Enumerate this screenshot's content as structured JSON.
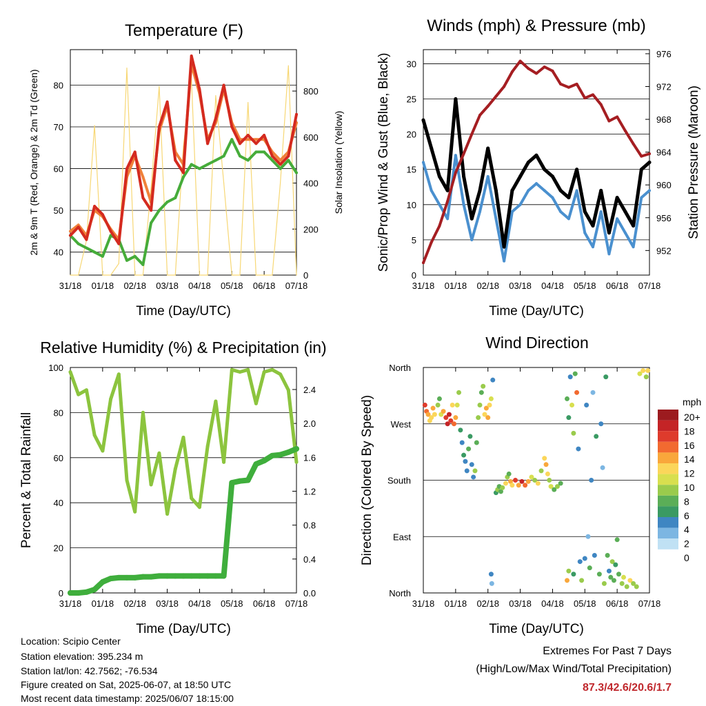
{
  "x_ticks": [
    "31/18",
    "01/18",
    "02/18",
    "03/18",
    "04/18",
    "05/18",
    "06/18",
    "07/18"
  ],
  "chart_data": [
    {
      "type": "line",
      "title": "Temperature (F)",
      "xlabel": "Time (Day/UTC)",
      "ylabel": "2m & 9m T (Red, Orange) & 2m Td (Green)",
      "y2label": "Solar Insolation (Yellow)",
      "ylim": [
        34.5,
        88.5
      ],
      "y_ticks": [
        40,
        50,
        60,
        70,
        80
      ],
      "y2lim": [
        0,
        980
      ],
      "y2_ticks": [
        0,
        200,
        400,
        600,
        800
      ],
      "x": [
        0,
        0.25,
        0.5,
        0.75,
        1.0,
        1.25,
        1.5,
        1.75,
        2.0,
        2.25,
        2.5,
        2.75,
        3.0,
        3.25,
        3.5,
        3.75,
        4.0,
        4.25,
        4.5,
        4.75,
        5.0,
        5.25,
        5.5,
        5.75,
        6.0,
        6.25,
        6.5,
        6.75,
        7.0
      ],
      "series": [
        {
          "color": "#d42a1f",
          "values": [
            44,
            46,
            43,
            51,
            49,
            45,
            42,
            60,
            64,
            53,
            50,
            70,
            76,
            62,
            59,
            87,
            79,
            66,
            72,
            80,
            70,
            66,
            68,
            66,
            68,
            63,
            61,
            63,
            73
          ]
        },
        {
          "color": "#f0813a",
          "values": [
            45,
            46.5,
            44,
            50,
            48.5,
            45.5,
            43,
            58,
            63,
            58,
            52,
            69,
            75,
            64,
            61,
            85,
            78,
            67,
            71,
            79,
            71,
            67,
            67,
            67,
            67,
            64,
            62,
            64,
            71
          ]
        },
        {
          "color": "#46ac3a",
          "values": [
            44,
            42,
            41,
            40,
            39,
            44,
            43,
            38,
            39,
            37,
            47,
            50,
            52,
            53,
            58,
            61,
            60,
            61,
            62,
            63,
            67,
            63,
            62,
            64,
            64,
            62,
            60,
            62,
            59
          ]
        },
        {
          "color": "#f7d774",
          "axis": "right",
          "values": [
            0,
            0,
            150,
            650,
            0,
            0,
            50,
            900,
            0,
            0,
            380,
            820,
            0,
            0,
            560,
            850,
            0,
            0,
            780,
            400,
            0,
            0,
            750,
            0,
            0,
            0,
            400,
            910,
            0
          ]
        }
      ]
    },
    {
      "type": "line",
      "title": "Winds (mph) & Pressure (mb)",
      "xlabel": "Time (Day/UTC)",
      "ylabel": "Sonic/Prop Wind & Gust (Blue, Black)",
      "y2label": "Station Pressure (Maroon)",
      "ylim": [
        0,
        32
      ],
      "y_ticks": [
        0,
        5,
        10,
        15,
        20,
        25,
        30
      ],
      "y2lim": [
        949,
        976.5
      ],
      "y2_ticks": [
        952,
        956,
        960,
        964,
        968,
        972,
        976
      ],
      "x": [
        0,
        0.25,
        0.5,
        0.75,
        1.0,
        1.25,
        1.5,
        1.75,
        2.0,
        2.25,
        2.5,
        2.75,
        3.0,
        3.25,
        3.5,
        3.75,
        4.0,
        4.25,
        4.5,
        4.75,
        5.0,
        5.25,
        5.5,
        5.75,
        6.0,
        6.25,
        6.5,
        6.75,
        7.0
      ],
      "series": [
        {
          "color": "#4a90cf",
          "values": [
            16,
            12,
            10,
            8,
            17,
            10,
            5,
            9,
            14,
            8,
            2,
            9,
            10,
            12,
            13,
            12,
            11,
            9,
            8,
            12,
            6,
            4,
            9,
            3,
            8,
            6,
            4,
            11,
            12
          ]
        },
        {
          "color": "#000000",
          "values": [
            22,
            18,
            14,
            12,
            25,
            14,
            8,
            12,
            18,
            12,
            4,
            12,
            14,
            16,
            17,
            15,
            14,
            12,
            11,
            15,
            9,
            7,
            12,
            6,
            11,
            9,
            7,
            15,
            16
          ]
        },
        {
          "color": "#a51e22",
          "axis": "right",
          "values": [
            950.5,
            953,
            955,
            958,
            961.5,
            963.8,
            966.2,
            968.5,
            969.6,
            970.8,
            972,
            973.8,
            975.1,
            974.2,
            973.6,
            974.4,
            973.9,
            972.3,
            971.9,
            972.3,
            970.6,
            971,
            969.8,
            967.8,
            968.3,
            966.6,
            965,
            963.5,
            963.8
          ]
        }
      ]
    },
    {
      "type": "line",
      "title": "Relative Humidity (%) & Precipitation (in)",
      "xlabel": "Time (Day/UTC)",
      "ylabel": "Percent & Total Rainfall",
      "ylim": [
        0,
        100
      ],
      "y_ticks": [
        0,
        20,
        40,
        60,
        80,
        100
      ],
      "y2lim": [
        0,
        2.66
      ],
      "y2_ticks": [
        "0.0",
        "0.4",
        "0.8",
        "1.2",
        "1.6",
        "2.0",
        "2.4"
      ],
      "x": [
        0,
        0.25,
        0.5,
        0.75,
        1.0,
        1.25,
        1.5,
        1.75,
        2.0,
        2.25,
        2.5,
        2.75,
        3.0,
        3.25,
        3.5,
        3.75,
        4.0,
        4.25,
        4.5,
        4.75,
        5.0,
        5.25,
        5.5,
        5.75,
        6.0,
        6.25,
        6.5,
        6.75,
        7.0
      ],
      "series": [
        {
          "color": "#8cc43e",
          "values": [
            98,
            88,
            90,
            70,
            63,
            86,
            97,
            50,
            36,
            80,
            48,
            62,
            35,
            55,
            69,
            42,
            38,
            65,
            85,
            58,
            99,
            98,
            99,
            84,
            98,
            99,
            97,
            90,
            58
          ]
        },
        {
          "color": "#3fae3c",
          "axis": "right",
          "values": [
            0,
            0,
            0.01,
            0.04,
            0.13,
            0.17,
            0.18,
            0.18,
            0.18,
            0.19,
            0.19,
            0.2,
            0.2,
            0.2,
            0.2,
            0.2,
            0.2,
            0.2,
            0.2,
            0.2,
            1.3,
            1.32,
            1.33,
            1.52,
            1.56,
            1.62,
            1.63,
            1.66,
            1.7
          ]
        }
      ]
    },
    {
      "type": "scatter",
      "title": "Wind Direction",
      "xlabel": "Time (Day/UTC)",
      "ylabel": "Direction (Colored By Speed)",
      "y_labels": [
        "North",
        "East",
        "South",
        "West",
        "North"
      ],
      "ylim": [
        0,
        360
      ],
      "legend_title": "mph",
      "legend_labels": [
        "20+",
        "18",
        "16",
        "14",
        "12",
        "10",
        "8",
        "6",
        "4",
        "2",
        "0"
      ],
      "colors": [
        "#9c1b1f",
        "#c42426",
        "#de3b2c",
        "#f26a30",
        "#f9a73b",
        "#fbd65a",
        "#d8df4f",
        "#9acb4c",
        "#5bae57",
        "#3a9a63",
        "#3f86c2",
        "#7cb6e2",
        "#c0e1f4"
      ],
      "points": [
        {
          "x": 0.05,
          "y": 300,
          "s": 17
        },
        {
          "x": 0.1,
          "y": 290,
          "s": 15
        },
        {
          "x": 0.15,
          "y": 285,
          "s": 13
        },
        {
          "x": 0.2,
          "y": 275,
          "s": 11
        },
        {
          "x": 0.25,
          "y": 280,
          "s": 12
        },
        {
          "x": 0.3,
          "y": 295,
          "s": 14
        },
        {
          "x": 0.35,
          "y": 285,
          "s": 12
        },
        {
          "x": 0.45,
          "y": 300,
          "s": 9
        },
        {
          "x": 0.5,
          "y": 310,
          "s": 7
        },
        {
          "x": 0.55,
          "y": 285,
          "s": 10
        },
        {
          "x": 0.62,
          "y": 290,
          "s": 13
        },
        {
          "x": 0.7,
          "y": 280,
          "s": 17
        },
        {
          "x": 0.75,
          "y": 270,
          "s": 19
        },
        {
          "x": 0.8,
          "y": 285,
          "s": 18
        },
        {
          "x": 0.85,
          "y": 275,
          "s": 16
        },
        {
          "x": 0.9,
          "y": 300,
          "s": 12
        },
        {
          "x": 0.95,
          "y": 270,
          "s": 15
        },
        {
          "x": 1.0,
          "y": 280,
          "s": 14
        },
        {
          "x": 1.05,
          "y": 300,
          "s": 10
        },
        {
          "x": 1.1,
          "y": 320,
          "s": 8
        },
        {
          "x": 1.15,
          "y": 260,
          "s": 5
        },
        {
          "x": 1.2,
          "y": 240,
          "s": 4
        },
        {
          "x": 1.25,
          "y": 220,
          "s": 5
        },
        {
          "x": 1.3,
          "y": 210,
          "s": 3
        },
        {
          "x": 1.35,
          "y": 195,
          "s": 4
        },
        {
          "x": 1.4,
          "y": 230,
          "s": 6
        },
        {
          "x": 1.45,
          "y": 250,
          "s": 5
        },
        {
          "x": 1.5,
          "y": 205,
          "s": 3
        },
        {
          "x": 1.55,
          "y": 185,
          "s": 4
        },
        {
          "x": 1.6,
          "y": 195,
          "s": 8
        },
        {
          "x": 1.65,
          "y": 240,
          "s": 7
        },
        {
          "x": 1.7,
          "y": 280,
          "s": 9
        },
        {
          "x": 1.75,
          "y": 300,
          "s": 8
        },
        {
          "x": 1.8,
          "y": 320,
          "s": 6
        },
        {
          "x": 1.85,
          "y": 330,
          "s": 9
        },
        {
          "x": 1.9,
          "y": 285,
          "s": 12
        },
        {
          "x": 1.95,
          "y": 295,
          "s": 14
        },
        {
          "x": 2.0,
          "y": 280,
          "s": 13
        },
        {
          "x": 2.05,
          "y": 300,
          "s": 11
        },
        {
          "x": 2.1,
          "y": 310,
          "s": 10
        },
        {
          "x": 2.15,
          "y": 340,
          "s": 3
        },
        {
          "x": 2.1,
          "y": 30,
          "s": 3
        },
        {
          "x": 2.12,
          "y": 15,
          "s": 2
        },
        {
          "x": 2.25,
          "y": 160,
          "s": 5
        },
        {
          "x": 2.3,
          "y": 165,
          "s": 8
        },
        {
          "x": 2.35,
          "y": 170,
          "s": 6
        },
        {
          "x": 2.4,
          "y": 162,
          "s": 7
        },
        {
          "x": 2.45,
          "y": 168,
          "s": 9
        },
        {
          "x": 2.55,
          "y": 175,
          "s": 12
        },
        {
          "x": 2.6,
          "y": 185,
          "s": 9
        },
        {
          "x": 2.65,
          "y": 190,
          "s": 7
        },
        {
          "x": 2.7,
          "y": 178,
          "s": 13
        },
        {
          "x": 2.75,
          "y": 172,
          "s": 11
        },
        {
          "x": 2.85,
          "y": 180,
          "s": 16
        },
        {
          "x": 2.95,
          "y": 172,
          "s": 14
        },
        {
          "x": 3.05,
          "y": 178,
          "s": 18
        },
        {
          "x": 3.15,
          "y": 172,
          "s": 15
        },
        {
          "x": 3.25,
          "y": 178,
          "s": 13
        },
        {
          "x": 3.35,
          "y": 185,
          "s": 10
        },
        {
          "x": 3.45,
          "y": 180,
          "s": 9
        },
        {
          "x": 3.55,
          "y": 175,
          "s": 11
        },
        {
          "x": 3.65,
          "y": 195,
          "s": 8
        },
        {
          "x": 3.75,
          "y": 215,
          "s": 12
        },
        {
          "x": 3.8,
          "y": 205,
          "s": 14
        },
        {
          "x": 3.85,
          "y": 190,
          "s": 11
        },
        {
          "x": 3.9,
          "y": 180,
          "s": 8
        },
        {
          "x": 3.95,
          "y": 170,
          "s": 10
        },
        {
          "x": 4.05,
          "y": 165,
          "s": 7
        },
        {
          "x": 4.15,
          "y": 170,
          "s": 9
        },
        {
          "x": 4.25,
          "y": 175,
          "s": 6
        },
        {
          "x": 4.45,
          "y": 20,
          "s": 14
        },
        {
          "x": 4.5,
          "y": 35,
          "s": 9
        },
        {
          "x": 4.45,
          "y": 310,
          "s": 7
        },
        {
          "x": 4.5,
          "y": 280,
          "s": 5
        },
        {
          "x": 4.55,
          "y": 345,
          "s": 3
        },
        {
          "x": 4.6,
          "y": 300,
          "s": 10
        },
        {
          "x": 4.65,
          "y": 255,
          "s": 8
        },
        {
          "x": 4.65,
          "y": 30,
          "s": 5
        },
        {
          "x": 4.7,
          "y": 350,
          "s": 6
        },
        {
          "x": 4.75,
          "y": 320,
          "s": 15
        },
        {
          "x": 4.8,
          "y": 230,
          "s": 3
        },
        {
          "x": 4.85,
          "y": 50,
          "s": 4
        },
        {
          "x": 4.9,
          "y": 20,
          "s": 8
        },
        {
          "x": 5.0,
          "y": 55,
          "s": 3
        },
        {
          "x": 5.05,
          "y": 300,
          "s": 4
        },
        {
          "x": 5.1,
          "y": 90,
          "s": 2
        },
        {
          "x": 5.15,
          "y": 40,
          "s": 6
        },
        {
          "x": 5.2,
          "y": 180,
          "s": 3
        },
        {
          "x": 5.25,
          "y": 320,
          "s": 2
        },
        {
          "x": 5.3,
          "y": 60,
          "s": 4
        },
        {
          "x": 5.35,
          "y": 250,
          "s": 5
        },
        {
          "x": 5.45,
          "y": 30,
          "s": 7
        },
        {
          "x": 5.5,
          "y": 270,
          "s": 3
        },
        {
          "x": 5.55,
          "y": 200,
          "s": 2
        },
        {
          "x": 5.6,
          "y": 15,
          "s": 9
        },
        {
          "x": 5.65,
          "y": 345,
          "s": 5
        },
        {
          "x": 5.7,
          "y": 60,
          "s": 6
        },
        {
          "x": 5.75,
          "y": 35,
          "s": 4
        },
        {
          "x": 5.8,
          "y": 25,
          "s": 7
        },
        {
          "x": 5.85,
          "y": 50,
          "s": 8
        },
        {
          "x": 5.9,
          "y": 20,
          "s": 6
        },
        {
          "x": 5.95,
          "y": 45,
          "s": 5
        },
        {
          "x": 6.0,
          "y": 85,
          "s": 6
        },
        {
          "x": 6.05,
          "y": 30,
          "s": 7
        },
        {
          "x": 6.15,
          "y": 15,
          "s": 9
        },
        {
          "x": 6.2,
          "y": 25,
          "s": 10
        },
        {
          "x": 6.3,
          "y": 10,
          "s": 8
        },
        {
          "x": 6.4,
          "y": 20,
          "s": 11
        },
        {
          "x": 6.5,
          "y": 15,
          "s": 9
        },
        {
          "x": 6.6,
          "y": 10,
          "s": 8
        },
        {
          "x": 6.7,
          "y": 350,
          "s": 10
        },
        {
          "x": 6.8,
          "y": 355,
          "s": 12
        },
        {
          "x": 6.9,
          "y": 345,
          "s": 9
        },
        {
          "x": 6.95,
          "y": 355,
          "s": 11
        }
      ]
    }
  ],
  "info": {
    "location": "Location: Scipio Center",
    "elevation": "Station elevation: 395.234 m",
    "latlon": "Station lat/lon: 42.7562; -76.534",
    "created": "Figure created on Sat, 2025-06-07, at 18:50 UTC",
    "recent": "Most recent data timestamp: 2025/06/07 18:15:00"
  },
  "extremes": {
    "title": "Extremes For Past 7 Days",
    "subtitle": "(High/Low/Max Wind/Total Precipitation)",
    "values": "87.3/42.6/20.6/1.7"
  }
}
